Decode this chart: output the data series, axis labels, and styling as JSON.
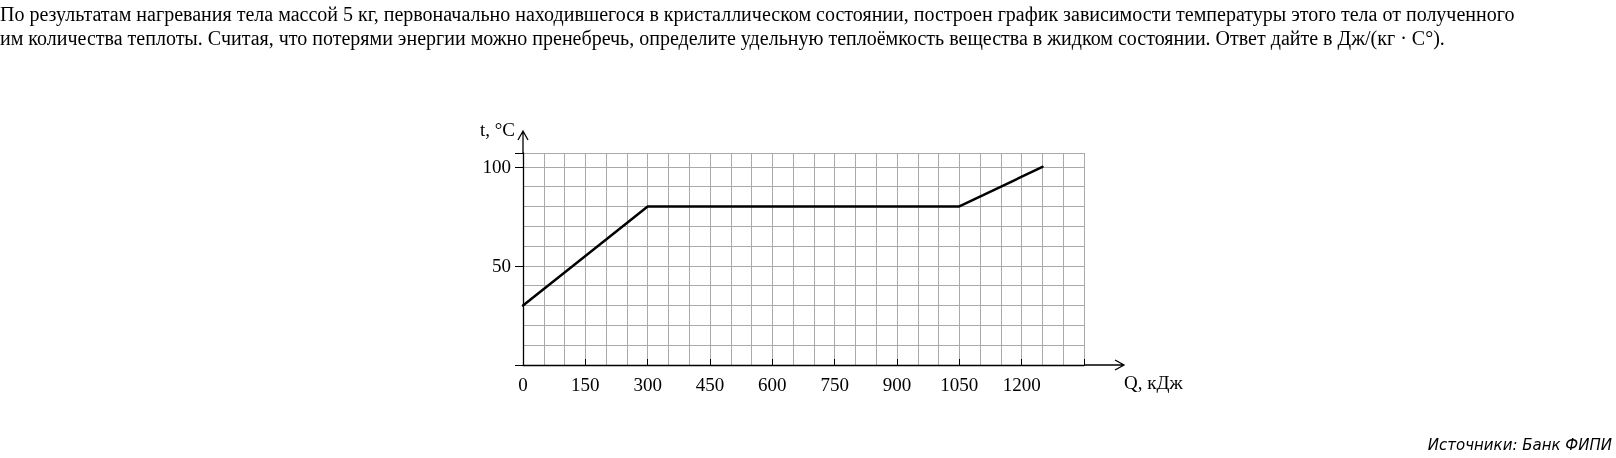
{
  "chart_data": {
    "type": "line",
    "title": "По результатам нагревания тела массой 5 кг, первоначально находившегося в кристаллическом состоянии, построен график зависимости температуры этого тела от полученного им количества теплоты. Считая, что потерями энергии можно пренебречь, определите удельную теплоёмкость вещества в жидком состоянии. Ответ дайте в Дж/(кг · C°).",
    "xlabel": "Q, кДж",
    "ylabel": "t, °C",
    "x": [
      0,
      300,
      1050,
      1250
    ],
    "series": [
      {
        "color": "#000000",
        "values": [
          30,
          80,
          80,
          100
        ]
      }
    ],
    "xlim": [
      0,
      1350
    ],
    "ylim": [
      0,
      107
    ],
    "xticks": [
      0,
      150,
      300,
      450,
      600,
      750,
      900,
      1050,
      1200
    ],
    "yticks": [
      50,
      100
    ],
    "grid": true,
    "marker": "none",
    "line_style": "solid",
    "annotations": [
      "Источники: Банк ФИПИ"
    ]
  }
}
